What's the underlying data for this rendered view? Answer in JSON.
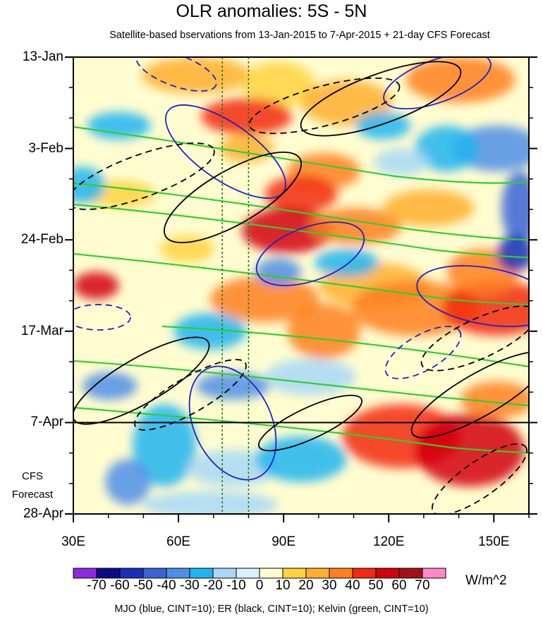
{
  "chart_data": {
    "type": "heatmap",
    "title": "OLR anomalies: 5S - 5N",
    "subtitle": "Satellite-based bservations from 13-Jan-2015 to 7-Apr-2015 + 21-day CFS Forecast",
    "x_axis": {
      "ticks": [
        "30E",
        "60E",
        "90E",
        "120E",
        "150E"
      ],
      "tick_values": [
        30,
        60,
        90,
        120,
        150
      ],
      "range": [
        30,
        160
      ]
    },
    "y_axis": {
      "ticks": [
        "13-Jan",
        "3-Feb",
        "24-Feb",
        "17-Mar",
        "7-Apr",
        "28-Apr"
      ],
      "range": [
        "13-Jan-2015",
        "28-Apr-2015"
      ],
      "inverted": true
    },
    "observation_period": [
      "13-Jan-2015",
      "7-Apr-2015"
    ],
    "forecast_label": "CFS Forecast",
    "forecast_days": 21,
    "reference_lines_lon": [
      72.5,
      80
    ],
    "colorbar": {
      "labels": [
        "-70",
        "-60",
        "-50",
        "-40",
        "-30",
        "-20",
        "-10",
        "0",
        "10",
        "20",
        "30",
        "40",
        "50",
        "60",
        "70"
      ],
      "levels": [
        -70,
        -60,
        -50,
        -40,
        -30,
        -20,
        -10,
        0,
        10,
        20,
        30,
        40,
        50,
        60,
        70
      ],
      "colors": [
        "#8a2be2",
        "#0b0b8a",
        "#1a2fb8",
        "#3a63d8",
        "#4f8ee8",
        "#1fb4f0",
        "#a8d8f6",
        "#d8f2fb",
        "#fffdd0",
        "#ffd23f",
        "#ffae2e",
        "#ff7f1f",
        "#f22a10",
        "#d4000a",
        "#a50f1c",
        "#ff88c8"
      ],
      "units": "W/m^2"
    },
    "contours": [
      {
        "name": "MJO",
        "color": "#2020c8",
        "cint": 10
      },
      {
        "name": "ER",
        "color": "#000000",
        "cint": 10
      },
      {
        "name": "Kelvin",
        "color": "#2ed02e",
        "cint": 10
      }
    ],
    "legend_text": "MJO (blue, CINT=10); ER (black, CINT=10); Kelvin (green, CINT=10)"
  }
}
